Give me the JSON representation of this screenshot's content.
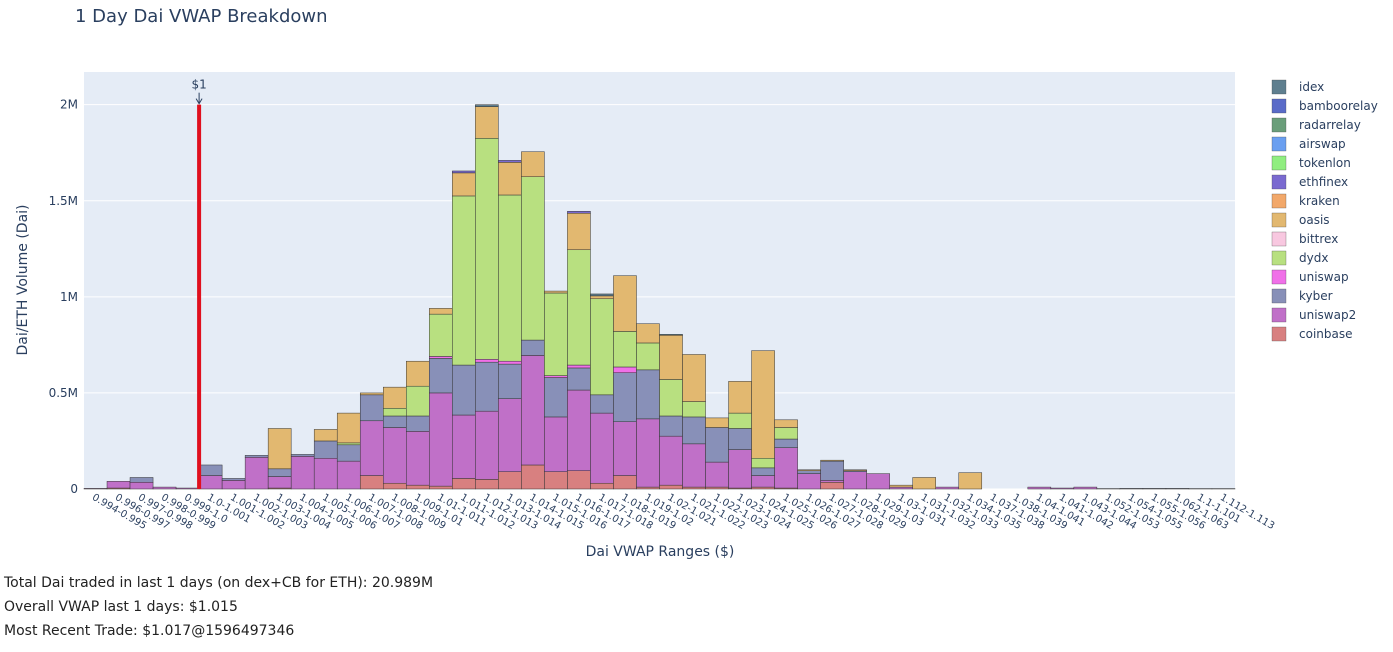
{
  "chart_data": {
    "type": "stacked_bar",
    "title": "1 Day Dai VWAP Breakdown",
    "x_label": "Dai VWAP Ranges ($)",
    "y_label": "Dai/ETH Volume (Dai)",
    "annotation": {
      "text": "$1",
      "y": 2000000
    },
    "categories": [
      "0.994-0.995",
      "0.996-0.997",
      "0.997-0.998",
      "0.998-0.999",
      "0.999-1.0",
      "1.0-1.001",
      "1.001-1.002",
      "1.002-1.003",
      "1.003-1.004",
      "1.004-1.005",
      "1.005-1.006",
      "1.006-1.007",
      "1.007-1.008",
      "1.008-1.009",
      "1.009-1.01",
      "1.01-1.011",
      "1.011-1.012",
      "1.012-1.013",
      "1.013-1.014",
      "1.014-1.015",
      "1.015-1.016",
      "1.016-1.017",
      "1.017-1.018",
      "1.018-1.019",
      "1.019-1.02",
      "1.02-1.021",
      "1.021-1.022",
      "1.022-1.023",
      "1.023-1.024",
      "1.024-1.025",
      "1.025-1.026",
      "1.026-1.027",
      "1.027-1.028",
      "1.028-1.029",
      "1.029-1.03",
      "1.03-1.031",
      "1.031-1.032",
      "1.032-1.033",
      "1.034-1.035",
      "1.037-1.038",
      "1.038-1.039",
      "1.04-1.041",
      "1.041-1.042",
      "1.043-1.044",
      "1.052-1.053",
      "1.054-1.055",
      "1.055-1.056",
      "1.062-1.063",
      "1.1-1.101",
      "1.112-1.113"
    ],
    "ylim": [
      0,
      2170000
    ],
    "yticks": [
      0,
      {
        "value": 500000,
        "label": "0.5M"
      },
      {
        "value": 1000000,
        "label": "1M"
      },
      {
        "value": 1500000,
        "label": "1.5M"
      },
      {
        "value": 2000000,
        "label": "2M"
      }
    ],
    "grid": true,
    "series": [
      {
        "name": "idex",
        "color": "#5f7f8f",
        "values": [
          0,
          0,
          0,
          0,
          0,
          0,
          0,
          0,
          0,
          0,
          0,
          0,
          0,
          0,
          0,
          0,
          0,
          10000,
          0,
          0,
          0,
          0,
          10000,
          0,
          0,
          5000,
          0,
          0,
          0,
          0,
          0,
          0,
          0,
          0,
          0,
          0,
          0,
          0,
          0,
          0,
          0,
          0,
          0,
          0,
          0,
          0,
          0,
          0,
          0,
          0
        ]
      },
      {
        "name": "bamboorelay",
        "color": "#5a6bc8",
        "values": [
          0,
          0,
          0,
          0,
          0,
          0,
          0,
          0,
          0,
          0,
          0,
          0,
          0,
          0,
          0,
          0,
          0,
          0,
          0,
          0,
          0,
          0,
          0,
          0,
          0,
          0,
          0,
          0,
          0,
          0,
          0,
          0,
          0,
          0,
          0,
          0,
          0,
          0,
          0,
          0,
          0,
          0,
          0,
          0,
          0,
          0,
          0,
          0,
          0,
          0
        ]
      },
      {
        "name": "radarrelay",
        "color": "#6a9e7a",
        "values": [
          0,
          0,
          0,
          0,
          0,
          0,
          0,
          0,
          0,
          0,
          0,
          0,
          0,
          0,
          0,
          0,
          0,
          0,
          0,
          0,
          0,
          0,
          0,
          0,
          0,
          0,
          0,
          0,
          0,
          0,
          0,
          0,
          0,
          0,
          0,
          0,
          0,
          0,
          0,
          0,
          0,
          0,
          0,
          0,
          0,
          0,
          0,
          0,
          0,
          0
        ]
      },
      {
        "name": "airswap",
        "color": "#6a9ff0",
        "values": [
          0,
          0,
          0,
          0,
          0,
          0,
          0,
          0,
          0,
          0,
          0,
          0,
          0,
          0,
          0,
          0,
          0,
          0,
          0,
          0,
          0,
          0,
          0,
          0,
          0,
          0,
          0,
          0,
          0,
          0,
          0,
          0,
          0,
          0,
          0,
          0,
          0,
          0,
          0,
          0,
          0,
          0,
          0,
          0,
          0,
          0,
          0,
          0,
          0,
          0
        ]
      },
      {
        "name": "tokenlon",
        "color": "#90ee80",
        "values": [
          0,
          0,
          0,
          0,
          0,
          0,
          0,
          0,
          0,
          0,
          0,
          0,
          0,
          0,
          0,
          0,
          0,
          0,
          0,
          0,
          0,
          0,
          0,
          0,
          0,
          0,
          0,
          0,
          0,
          0,
          0,
          0,
          0,
          0,
          0,
          0,
          0,
          0,
          0,
          0,
          0,
          0,
          0,
          0,
          0,
          0,
          0,
          0,
          0,
          0
        ]
      },
      {
        "name": "ethfinex",
        "color": "#7a6ad0",
        "values": [
          0,
          0,
          0,
          0,
          0,
          0,
          0,
          0,
          0,
          0,
          0,
          0,
          0,
          0,
          0,
          0,
          10000,
          0,
          10000,
          0,
          0,
          10000,
          0,
          0,
          0,
          0,
          0,
          0,
          0,
          0,
          0,
          0,
          0,
          0,
          0,
          0,
          0,
          0,
          0,
          0,
          0,
          0,
          0,
          0,
          0,
          0,
          0,
          0,
          0,
          0
        ]
      },
      {
        "name": "kraken",
        "color": "#f2a86a",
        "values": [
          0,
          0,
          0,
          0,
          0,
          0,
          0,
          0,
          0,
          0,
          0,
          0,
          0,
          0,
          0,
          0,
          0,
          0,
          0,
          0,
          0,
          0,
          0,
          0,
          0,
          0,
          0,
          0,
          0,
          0,
          0,
          0,
          0,
          0,
          0,
          0,
          0,
          0,
          0,
          0,
          0,
          0,
          0,
          0,
          0,
          0,
          0,
          0,
          0,
          0
        ]
      },
      {
        "name": "oasis",
        "color": "#e2b870",
        "values": [
          0,
          0,
          0,
          0,
          0,
          0,
          0,
          0,
          210000,
          0,
          60000,
          155000,
          10000,
          110000,
          130000,
          30000,
          120000,
          165000,
          170000,
          130000,
          10000,
          190000,
          15000,
          290000,
          100000,
          230000,
          245000,
          50000,
          165000,
          560000,
          40000,
          5000,
          5000,
          5000,
          0,
          10000,
          60000,
          0,
          85000,
          0,
          0,
          0,
          0,
          0,
          0,
          0,
          0,
          0,
          0,
          0
        ]
      },
      {
        "name": "bittrex",
        "color": "#f8c8e0",
        "values": [
          0,
          0,
          0,
          0,
          0,
          0,
          0,
          0,
          0,
          0,
          0,
          0,
          0,
          0,
          0,
          0,
          0,
          0,
          0,
          0,
          0,
          0,
          0,
          0,
          0,
          0,
          0,
          0,
          0,
          0,
          0,
          0,
          0,
          0,
          0,
          0,
          0,
          0,
          0,
          0,
          0,
          0,
          0,
          0,
          0,
          0,
          0,
          0,
          0,
          0
        ]
      },
      {
        "name": "dydx",
        "color": "#b8e080",
        "values": [
          0,
          0,
          0,
          0,
          0,
          0,
          0,
          0,
          0,
          0,
          0,
          10000,
          0,
          40000,
          155000,
          220000,
          880000,
          1150000,
          865000,
          850000,
          430000,
          600000,
          500000,
          185000,
          140000,
          190000,
          80000,
          0,
          80000,
          50000,
          60000,
          0,
          0,
          0,
          0,
          0,
          0,
          0,
          0,
          0,
          0,
          0,
          0,
          0,
          0,
          0,
          0,
          0,
          0,
          0
        ]
      },
      {
        "name": "uniswap",
        "color": "#f070e8",
        "values": [
          0,
          0,
          0,
          0,
          0,
          0,
          0,
          0,
          0,
          0,
          0,
          0,
          0,
          0,
          0,
          10000,
          0,
          15000,
          15000,
          0,
          10000,
          15000,
          0,
          30000,
          0,
          0,
          0,
          0,
          0,
          0,
          0,
          0,
          0,
          0,
          0,
          0,
          0,
          0,
          0,
          0,
          0,
          0,
          0,
          0,
          0,
          0,
          0,
          0,
          0,
          0
        ]
      },
      {
        "name": "kyber",
        "color": "#8890b8",
        "values": [
          0,
          0,
          25000,
          0,
          0,
          55000,
          10000,
          10000,
          40000,
          10000,
          90000,
          85000,
          135000,
          60000,
          80000,
          180000,
          260000,
          255000,
          180000,
          80000,
          205000,
          115000,
          95000,
          255000,
          255000,
          105000,
          140000,
          180000,
          110000,
          40000,
          45000,
          15000,
          100000,
          5000,
          0,
          0,
          0,
          0,
          0,
          0,
          0,
          0,
          0,
          0,
          2000,
          3000,
          3000,
          3000,
          2000,
          2000
        ]
      },
      {
        "name": "uniswap2",
        "color": "#c070c8",
        "values": [
          3000,
          35000,
          35000,
          10000,
          5000,
          70000,
          45000,
          165000,
          60000,
          170000,
          160000,
          145000,
          285000,
          290000,
          280000,
          485000,
          330000,
          355000,
          380000,
          570000,
          285000,
          420000,
          365000,
          280000,
          355000,
          255000,
          225000,
          130000,
          200000,
          60000,
          210000,
          80000,
          10000,
          90000,
          80000,
          10000,
          0,
          10000,
          0,
          0,
          0,
          10000,
          5000,
          10000,
          0,
          0,
          0,
          0,
          0,
          0
        ]
      },
      {
        "name": "coinbase",
        "color": "#d88080",
        "values": [
          0,
          5000,
          0,
          0,
          0,
          0,
          0,
          0,
          5000,
          0,
          0,
          0,
          70000,
          30000,
          20000,
          15000,
          55000,
          50000,
          90000,
          125000,
          90000,
          95000,
          30000,
          70000,
          10000,
          20000,
          10000,
          10000,
          5000,
          10000,
          5000,
          0,
          35000,
          0,
          0,
          0,
          0,
          0,
          0,
          0,
          0,
          0,
          0,
          0,
          0,
          0,
          0,
          0,
          0,
          0
        ]
      }
    ]
  },
  "footer": [
    "Total Dai traded in last 1 days (on dex+CB for ETH): 20.989M",
    "Overall VWAP last 1 days: $1.015",
    "Most Recent Trade: $1.017@1596497346"
  ]
}
